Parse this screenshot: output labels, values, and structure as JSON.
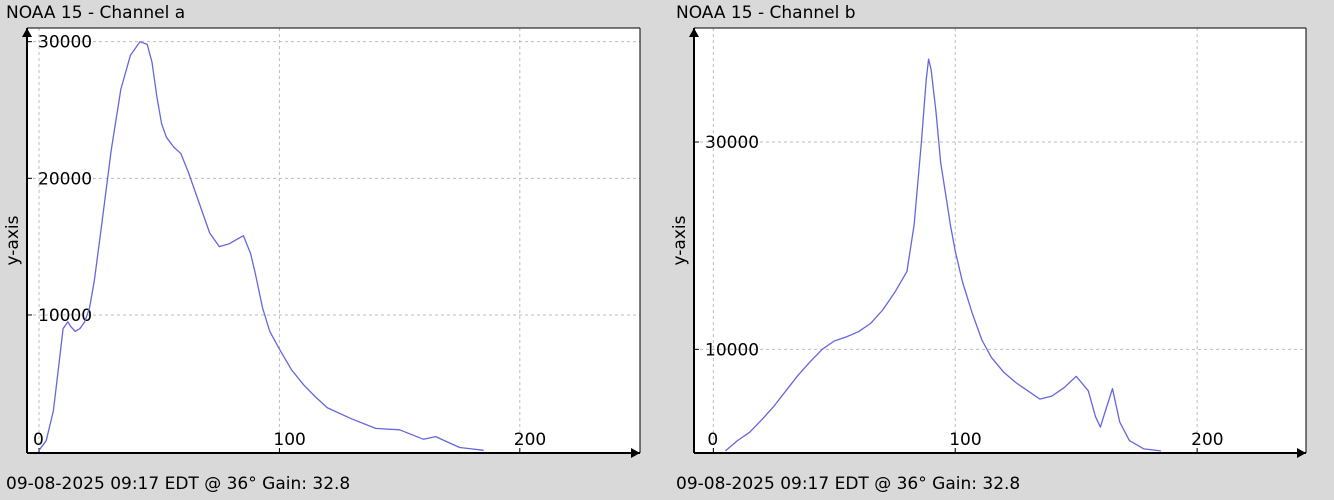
{
  "chart_data": [
    {
      "type": "line",
      "title": "NOAA 15 - Channel a",
      "footer": "09-08-2025 09:17 EDT @ 36° Gain: 32.8",
      "ylabel": "y-axis",
      "xlabel": "",
      "xlim": [
        -5,
        250
      ],
      "ylim": [
        -100,
        31000
      ],
      "x_ticks": [
        0,
        100,
        200
      ],
      "y_ticks": [
        10000,
        20000,
        30000
      ],
      "grid": true,
      "color": "#6666dd",
      "x": [
        0,
        3,
        6,
        8,
        10,
        12,
        13,
        15,
        17,
        19,
        21,
        23,
        26,
        30,
        34,
        38,
        42,
        45,
        47,
        49,
        51,
        53,
        56,
        59,
        62,
        65,
        68,
        71,
        75,
        79,
        82,
        85,
        88,
        90,
        93,
        96,
        100,
        105,
        110,
        115,
        120,
        130,
        140,
        150,
        160,
        165,
        170,
        175,
        180,
        185
      ],
      "values": [
        100,
        800,
        3000,
        6000,
        9000,
        9500,
        9200,
        8800,
        9000,
        9500,
        10500,
        12500,
        16500,
        22000,
        26500,
        29000,
        30000,
        29800,
        28500,
        26000,
        24000,
        23000,
        22300,
        21800,
        20500,
        19000,
        17500,
        16000,
        15000,
        15200,
        15500,
        15800,
        14500,
        13000,
        10500,
        8800,
        7500,
        6000,
        4900,
        4000,
        3200,
        2400,
        1700,
        1600,
        900,
        1100,
        700,
        300,
        200,
        100
      ]
    },
    {
      "type": "line",
      "title": "NOAA 15 - Channel b",
      "footer": "09-08-2025 09:17 EDT @ 36° Gain: 32.8",
      "ylabel": "y-axis",
      "xlabel": "",
      "xlim": [
        -8,
        245
      ],
      "ylim": [
        0,
        41000
      ],
      "x_ticks": [
        0,
        100,
        200
      ],
      "y_ticks": [
        10000,
        30000
      ],
      "grid": true,
      "color": "#6666dd",
      "x": [
        5,
        10,
        15,
        20,
        25,
        30,
        35,
        40,
        45,
        50,
        55,
        60,
        65,
        70,
        75,
        80,
        83,
        86,
        88,
        89,
        90,
        92,
        94,
        96,
        98,
        100,
        103,
        107,
        111,
        115,
        120,
        125,
        130,
        135,
        140,
        145,
        150,
        155,
        158,
        160,
        162,
        165,
        168,
        172,
        178,
        185
      ],
      "values": [
        200,
        1200,
        2000,
        3200,
        4500,
        6000,
        7500,
        8800,
        10000,
        10800,
        11200,
        11700,
        12500,
        13800,
        15500,
        17500,
        22000,
        30000,
        36000,
        38000,
        37000,
        33000,
        28000,
        25000,
        22000,
        19500,
        16500,
        13500,
        10900,
        9200,
        7800,
        6800,
        6000,
        5200,
        5500,
        6300,
        7400,
        6000,
        3500,
        2500,
        4000,
        6200,
        3000,
        1200,
        400,
        200
      ]
    }
  ]
}
